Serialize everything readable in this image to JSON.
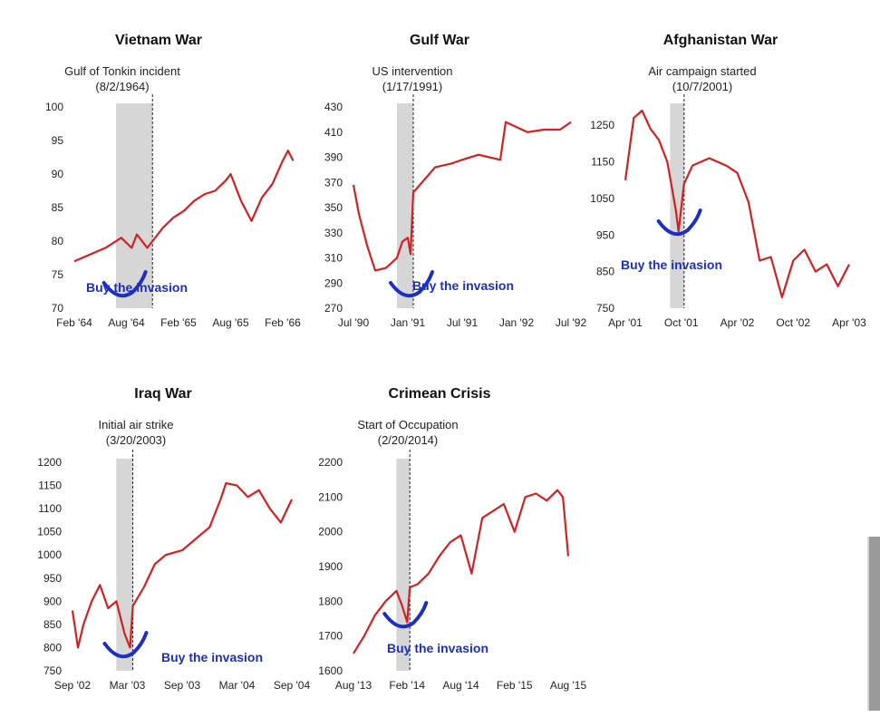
{
  "colors": {
    "line": "#d42020",
    "annotation": "#1c2fc2",
    "shade": "#d6d6d6",
    "axis": "#555555"
  },
  "chart_data": [
    {
      "type": "line",
      "title": "Vietnam War",
      "event_label": "Gulf of Tonkin incident",
      "event_date": "(8/2/1964)",
      "annotation": "Buy the invasion",
      "x_ticks": [
        "Feb '64",
        "Aug '64",
        "Feb '65",
        "Aug '65",
        "Feb '66"
      ],
      "y_ticks": [
        70,
        75,
        80,
        85,
        90,
        95,
        100
      ],
      "ylim": [
        70,
        100
      ],
      "shade": [
        0.8,
        1.5
      ],
      "event_x": 1.5,
      "series": [
        {
          "x": [
            0,
            0.3,
            0.6,
            0.9,
            1.1,
            1.2,
            1.4,
            1.5,
            1.7,
            1.9,
            2.1,
            2.3,
            2.5,
            2.7,
            2.9,
            3.0,
            3.2,
            3.4,
            3.6,
            3.8,
            4.0,
            4.1,
            4.2
          ],
          "y": [
            77,
            78,
            79,
            80.5,
            79,
            81,
            79,
            80,
            82,
            83.5,
            84.5,
            86,
            87,
            87.5,
            89,
            90,
            86,
            83,
            86.5,
            88.5,
            92,
            93.5,
            92
          ]
        }
      ]
    },
    {
      "type": "line",
      "title": "Gulf War",
      "event_label": "US intervention",
      "event_date": "(1/17/1991)",
      "annotation": "Buy the invasion",
      "x_ticks": [
        "Jul '90",
        "Jan '91",
        "Jul '91",
        "Jan '92",
        "Jul '92"
      ],
      "y_ticks": [
        270,
        290,
        310,
        330,
        350,
        370,
        390,
        410,
        430
      ],
      "ylim": [
        270,
        430
      ],
      "shade": [
        0.8,
        1.1
      ],
      "event_x": 1.1,
      "series": [
        {
          "x": [
            0,
            0.1,
            0.25,
            0.4,
            0.6,
            0.8,
            0.9,
            1.0,
            1.05,
            1.1,
            1.3,
            1.5,
            1.8,
            2.0,
            2.3,
            2.5,
            2.7,
            2.8,
            3.0,
            3.2,
            3.5,
            3.8,
            4.0
          ],
          "y": [
            368,
            345,
            320,
            300,
            302,
            310,
            323,
            326,
            313,
            362,
            372,
            382,
            385,
            388,
            392,
            390,
            388,
            418,
            414,
            410,
            412,
            412,
            418
          ]
        }
      ]
    },
    {
      "type": "line",
      "title": "Afghanistan War",
      "event_label": "Air campaign started",
      "event_date": "(10/7/2001)",
      "annotation": "Buy the invasion",
      "x_ticks": [
        "Apr '01",
        "Oct '01",
        "Apr '02",
        "Oct '02",
        "Apr '03"
      ],
      "y_ticks": [
        750,
        850,
        950,
        1050,
        1150,
        1250
      ],
      "ylim": [
        750,
        1300
      ],
      "shade": [
        0.8,
        1.05
      ],
      "event_x": 1.05,
      "series": [
        {
          "x": [
            0,
            0.15,
            0.3,
            0.45,
            0.6,
            0.75,
            0.9,
            0.95,
            1.05,
            1.2,
            1.5,
            1.8,
            2.0,
            2.2,
            2.4,
            2.6,
            2.8,
            3.0,
            3.2,
            3.4,
            3.6,
            3.8,
            4.0
          ],
          "y": [
            1100,
            1270,
            1290,
            1240,
            1210,
            1150,
            1020,
            960,
            1090,
            1140,
            1160,
            1140,
            1120,
            1040,
            880,
            890,
            780,
            880,
            910,
            850,
            870,
            810,
            870
          ]
        }
      ]
    },
    {
      "type": "line",
      "title": "Iraq War",
      "event_label": "Initial air strike",
      "event_date": "(3/20/2003)",
      "annotation": "Buy the invasion",
      "x_ticks": [
        "Sep '02",
        "Mar '03",
        "Sep '03",
        "Mar '04",
        "Sep '04"
      ],
      "y_ticks": [
        750,
        800,
        850,
        900,
        950,
        1000,
        1050,
        1100,
        1150,
        1200
      ],
      "ylim": [
        750,
        1200
      ],
      "shade": [
        0.8,
        1.1
      ],
      "event_x": 1.1,
      "series": [
        {
          "x": [
            0,
            0.1,
            0.2,
            0.35,
            0.5,
            0.65,
            0.8,
            0.95,
            1.05,
            1.1,
            1.3,
            1.5,
            1.7,
            2.0,
            2.3,
            2.5,
            2.7,
            2.8,
            3.0,
            3.2,
            3.4,
            3.6,
            3.8,
            4.0
          ],
          "y": [
            880,
            800,
            850,
            900,
            935,
            885,
            900,
            830,
            800,
            890,
            930,
            980,
            1000,
            1010,
            1040,
            1060,
            1120,
            1155,
            1150,
            1125,
            1140,
            1100,
            1070,
            1120
          ]
        }
      ]
    },
    {
      "type": "line",
      "title": "Crimean Crisis",
      "event_label": "Start of Occupation",
      "event_date": "(2/20/2014)",
      "annotation": "Buy the invasion",
      "x_ticks": [
        "Aug '13",
        "Feb '14",
        "Aug '14",
        "Feb '15",
        "Aug '15"
      ],
      "y_ticks": [
        1600,
        1700,
        1800,
        1900,
        2000,
        2100,
        2200
      ],
      "ylim": [
        1600,
        2200
      ],
      "shade": [
        0.8,
        1.05
      ],
      "event_x": 1.05,
      "series": [
        {
          "x": [
            0,
            0.2,
            0.4,
            0.6,
            0.8,
            0.9,
            1.0,
            1.05,
            1.2,
            1.4,
            1.6,
            1.8,
            2.0,
            2.2,
            2.4,
            2.6,
            2.8,
            3.0,
            3.2,
            3.4,
            3.6,
            3.8,
            3.9,
            4.0
          ],
          "y": [
            1650,
            1700,
            1760,
            1800,
            1830,
            1790,
            1740,
            1840,
            1850,
            1880,
            1930,
            1970,
            1990,
            1880,
            2040,
            2060,
            2080,
            2000,
            2100,
            2110,
            2090,
            2120,
            2100,
            1930
          ]
        }
      ]
    }
  ]
}
